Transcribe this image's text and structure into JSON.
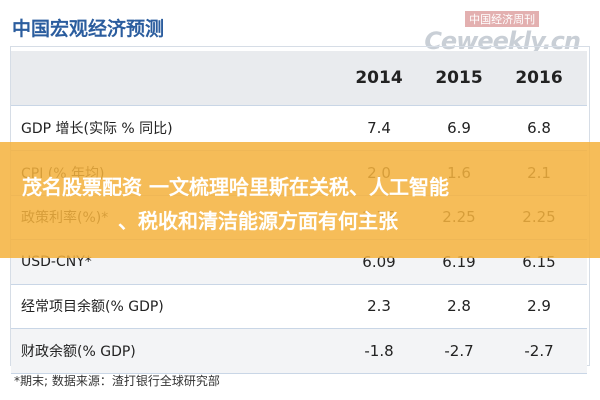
{
  "header": {
    "title": "中国宏观经济预测",
    "watermark_cn": "中国经济周刊",
    "watermark_en": "Ceweekly.cn"
  },
  "table": {
    "columns": [
      "2014",
      "2015",
      "2016"
    ],
    "rows": [
      [
        "GDP 增长(实际 % 同比)",
        "7.4",
        "6.9",
        "6.8"
      ],
      [
        "CPI (% 年均)",
        "2.0",
        "1.6",
        "2.1"
      ],
      [
        "政策利率(%)*",
        "2.75",
        "2.25",
        "2.25"
      ],
      [
        "USD-CNY*",
        "6.09",
        "6.19",
        "6.15"
      ],
      [
        "经常项目余额(% GDP)",
        "2.3",
        "2.8",
        "2.9"
      ],
      [
        "财政余额(% GDP)",
        "-1.8",
        "-2.7",
        "-2.7"
      ]
    ]
  },
  "footnote": "*期末;   数据来源：渣打银行全球研究部",
  "overlay": {
    "lines": [
      "茂名股票配资 一文梳理哈里斯在关税、人工智能",
      "、税收和清洁能源方面有何主张"
    ]
  }
}
